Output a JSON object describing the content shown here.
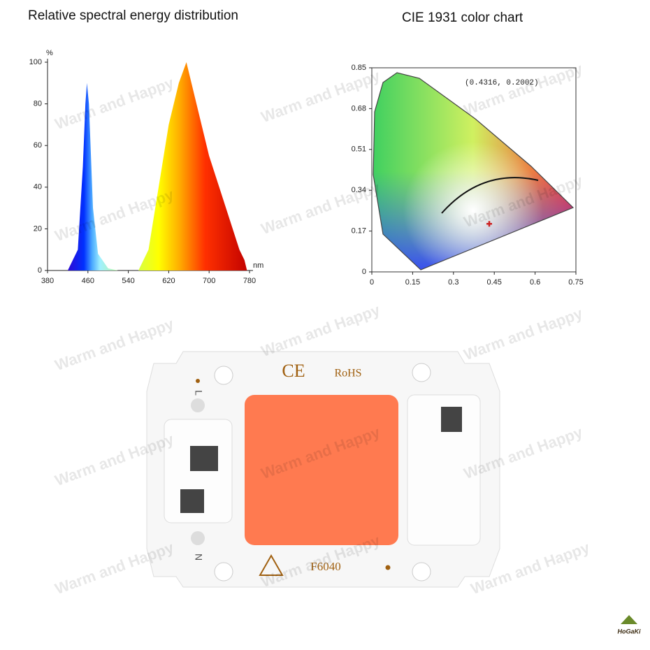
{
  "chart_data": [
    {
      "type": "area",
      "title": "Relative spectral energy distribution",
      "y_label": "%",
      "x_label": "nm",
      "x": [
        420,
        440,
        450,
        455,
        458,
        462,
        470,
        480,
        500,
        520,
        560,
        580,
        600,
        620,
        640,
        655,
        670,
        700,
        720,
        740,
        760,
        770,
        775
      ],
      "values": [
        0,
        10,
        50,
        80,
        90,
        80,
        30,
        8,
        1,
        0,
        0,
        10,
        40,
        70,
        90,
        100,
        85,
        55,
        40,
        25,
        10,
        5,
        0
      ],
      "xlim": [
        380,
        780
      ],
      "xticks": [
        380,
        460,
        540,
        620,
        700,
        780
      ],
      "ylim": [
        0,
        100
      ],
      "yticks": [
        0,
        20,
        40,
        60,
        80,
        100
      ]
    },
    {
      "type": "scatter",
      "title": "CIE 1931 color chart",
      "annotation": "(0.4316, 0.2002)",
      "x": [
        0.4316
      ],
      "values": [
        0.2002
      ],
      "color": "#cc2222",
      "xlim": [
        0,
        0.75
      ],
      "xticks": [
        0,
        0.15,
        0.3,
        0.45,
        0.6,
        0.75
      ],
      "ylim": [
        0,
        0.85
      ],
      "yticks": [
        0,
        0.17,
        0.34,
        0.51,
        0.68,
        0.85
      ]
    }
  ],
  "product": {
    "ce": "CE",
    "rohs": "RoHS",
    "model": "F6040",
    "l": "L",
    "n": "N"
  },
  "watermark": "Warm and Happy",
  "logo": "HoGaKi"
}
